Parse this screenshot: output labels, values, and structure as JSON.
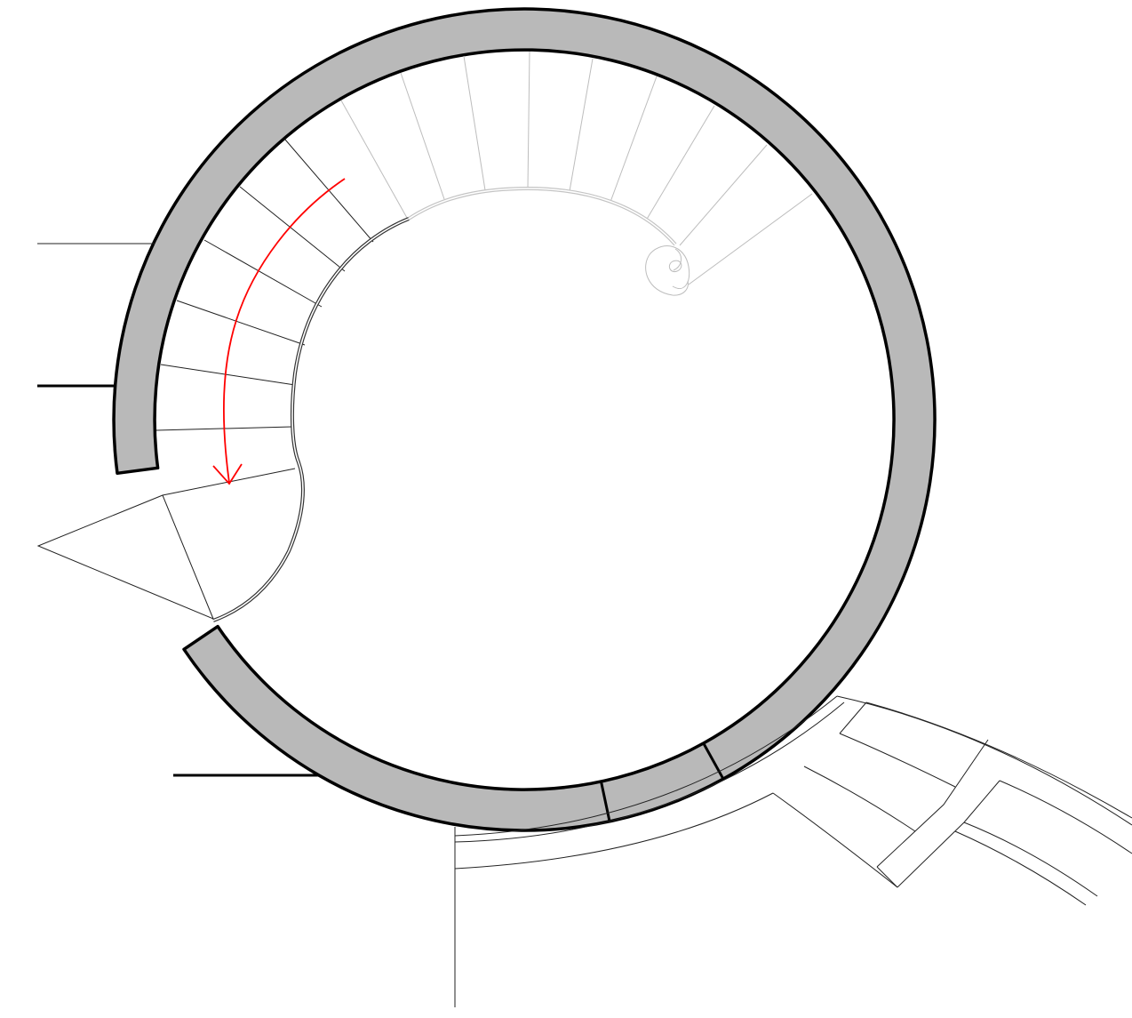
{
  "drawing": {
    "type": "spiral staircase floor plan",
    "colors": {
      "wall_fill": "#b9b9b9",
      "outline": "#000000",
      "upper_flight": "#bdbdbd",
      "direction_arrow": "#ff0000",
      "background": "#ffffff"
    },
    "elements": [
      "circular-wall",
      "spiral-stair-treads",
      "inner-handrail",
      "upper-flight-ghosted",
      "handrail-volute",
      "direction-arrow",
      "landing",
      "wall-stubs",
      "curved-exterior-steps"
    ]
  }
}
